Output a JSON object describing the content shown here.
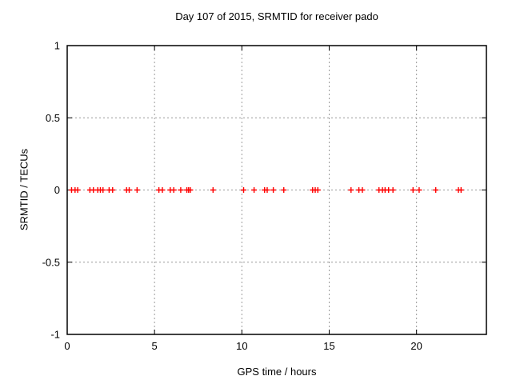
{
  "chart_data": {
    "type": "scatter",
    "title": "Day 107 of 2015, SRMTID for receiver pado",
    "xlabel": "GPS time / hours",
    "ylabel": "SRMTID / TECUs",
    "xlim": [
      0,
      24
    ],
    "ylim": [
      -1,
      1
    ],
    "xticks": [
      0,
      5,
      10,
      15,
      20
    ],
    "yticks": [
      -1,
      -0.5,
      0,
      0.5,
      1
    ],
    "grid": true,
    "legend_position": "none",
    "marker": "plus",
    "marker_color": "#ff0000",
    "axis_color": "#000000",
    "grid_color": "#9a9a9a",
    "series": [
      {
        "name": "SRMTID",
        "x": [
          0.25,
          0.45,
          0.6,
          1.3,
          1.5,
          1.75,
          1.9,
          2.05,
          2.4,
          2.6,
          3.4,
          3.55,
          4.0,
          5.25,
          5.45,
          5.9,
          6.1,
          6.5,
          6.85,
          6.95,
          7.05,
          8.35,
          10.1,
          10.7,
          11.3,
          11.45,
          11.8,
          12.4,
          14.05,
          14.2,
          14.35,
          16.25,
          16.7,
          16.9,
          17.85,
          18.05,
          18.2,
          18.4,
          18.65,
          19.8,
          20.15,
          21.1,
          22.4,
          22.55
        ],
        "y": [
          0,
          0,
          0,
          0,
          0,
          0,
          0,
          0,
          0,
          0,
          0,
          0,
          0,
          0,
          0,
          0,
          0,
          0,
          0,
          0,
          0,
          0,
          0,
          0,
          0,
          0,
          0,
          0,
          0,
          0,
          0,
          0,
          0,
          0,
          0,
          0,
          0,
          0,
          0,
          0,
          0,
          0,
          0,
          0
        ]
      }
    ]
  }
}
